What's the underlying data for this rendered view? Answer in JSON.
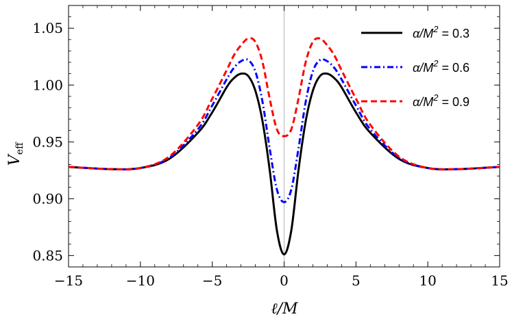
{
  "chart_data": {
    "type": "line",
    "xlabel": "ℓ/M",
    "ylabel": "V",
    "ylabel_sub": "eff",
    "xlim": [
      -15,
      15
    ],
    "ylim": [
      0.84,
      1.07
    ],
    "xticks": [
      -15,
      -10,
      -5,
      0,
      5,
      10,
      15
    ],
    "xtick_labels": [
      "−15",
      "−10",
      "−5",
      "0",
      "5",
      "10",
      "15"
    ],
    "yticks": [
      0.85,
      0.9,
      0.95,
      1.0,
      1.05
    ],
    "ytick_labels": [
      "0.85",
      "0.90",
      "0.95",
      "1.00",
      "1.05"
    ],
    "legend_position": "top-right",
    "grid": false,
    "series": [
      {
        "name": "α/M² = 0.3",
        "name_parts": [
          "α/M",
          "2",
          " = 0.3"
        ],
        "color": "#000000",
        "style": "solid",
        "x": [
          -15,
          -12,
          -10,
          -8,
          -6,
          -5,
          -4,
          -3.5,
          -3,
          -2.5,
          -2,
          -1.5,
          -1,
          -0.5,
          0,
          0.5,
          1,
          1.5,
          2,
          2.5,
          3,
          3.5,
          4,
          5,
          6,
          8,
          10,
          12,
          15
        ],
        "y": [
          0.928,
          0.926,
          0.927,
          0.935,
          0.958,
          0.976,
          0.998,
          1.006,
          1.01,
          1.008,
          0.995,
          0.968,
          0.925,
          0.872,
          0.851,
          0.872,
          0.925,
          0.968,
          0.995,
          1.008,
          1.01,
          1.006,
          0.998,
          0.976,
          0.958,
          0.935,
          0.927,
          0.926,
          0.928
        ]
      },
      {
        "name": "α/M² = 0.6",
        "name_parts": [
          "α/M",
          "2",
          " = 0.6"
        ],
        "color": "#0000ff",
        "style": "dashdot",
        "x": [
          -15,
          -12,
          -10,
          -8,
          -6,
          -5,
          -4,
          -3.5,
          -3,
          -2.5,
          -2,
          -1.5,
          -1,
          -0.5,
          0,
          0.5,
          1,
          1.5,
          2,
          2.5,
          3,
          3.5,
          4,
          5,
          6,
          8,
          10,
          12,
          15
        ],
        "y": [
          0.928,
          0.926,
          0.927,
          0.936,
          0.961,
          0.982,
          1.005,
          1.015,
          1.021,
          1.022,
          1.012,
          0.985,
          0.944,
          0.908,
          0.897,
          0.908,
          0.944,
          0.985,
          1.012,
          1.022,
          1.021,
          1.015,
          1.005,
          0.982,
          0.961,
          0.936,
          0.927,
          0.926,
          0.928
        ]
      },
      {
        "name": "α/M² = 0.9",
        "name_parts": [
          "α/M",
          "2",
          " = 0.9"
        ],
        "color": "#ff0000",
        "style": "dashed",
        "x": [
          -15,
          -12,
          -10,
          -8,
          -6,
          -5,
          -4,
          -3.5,
          -3,
          -2.5,
          -2,
          -1.5,
          -1,
          -0.5,
          0,
          0.5,
          1,
          1.5,
          2,
          2.5,
          3,
          3.5,
          4,
          5,
          6,
          8,
          10,
          12,
          15
        ],
        "y": [
          0.928,
          0.926,
          0.927,
          0.937,
          0.965,
          0.988,
          1.013,
          1.026,
          1.035,
          1.041,
          1.038,
          1.02,
          0.988,
          0.961,
          0.955,
          0.961,
          0.988,
          1.02,
          1.038,
          1.041,
          1.035,
          1.026,
          1.013,
          0.988,
          0.965,
          0.937,
          0.927,
          0.926,
          0.928
        ]
      }
    ]
  }
}
